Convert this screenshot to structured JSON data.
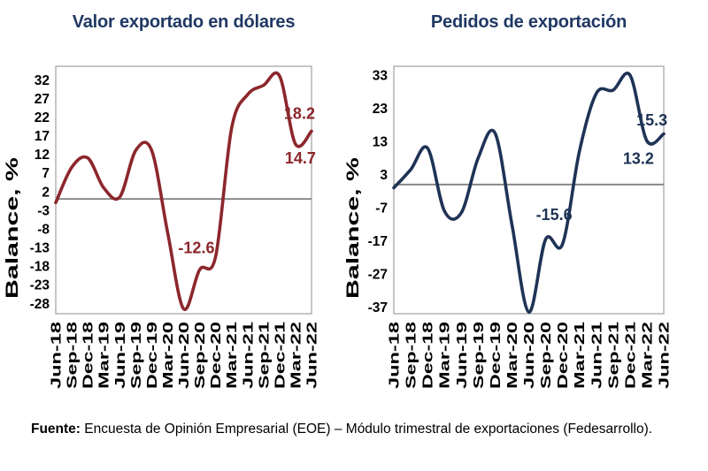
{
  "page": {
    "background": "#ffffff"
  },
  "styles": {
    "title_color": "#1F3864",
    "axis_text_color": "#000000",
    "frame_color": "#b3b3b3",
    "baseline_color": "#808080"
  },
  "chart_data": [
    {
      "type": "line",
      "title": "Valor exportado en dólares",
      "ylabel": "Balance, %",
      "categories": [
        "Jun-18",
        "Sep-18",
        "Dec-18",
        "Mar-19",
        "Jun-19",
        "Sep-19",
        "Dec-19",
        "Mar-20",
        "Jun-20",
        "Sep-20",
        "Dec-20",
        "Mar-21",
        "Jun-21",
        "Sep-21",
        "Dec-21",
        "Mar-22",
        "Jun-22"
      ],
      "values": [
        -1,
        8.5,
        11,
        3,
        0.5,
        13,
        13,
        -9,
        -29.5,
        -19,
        -15.5,
        19,
        28,
        30.5,
        33,
        14.7,
        18.2
      ],
      "yticks": [
        32,
        27,
        22,
        17,
        12,
        7,
        2,
        -3,
        -8,
        -13,
        -18,
        -23,
        -28
      ],
      "ylim": [
        -30.8,
        35.6
      ],
      "baseline": 0,
      "grid": false,
      "legend": "none",
      "line_color": "#8C272C",
      "annotations": [
        {
          "text": "18.2",
          "x_index": 15.25,
          "y": 23
        },
        {
          "text": "14.7",
          "x_index": 15.3,
          "y": 11
        },
        {
          "text": "-12.6",
          "x_index": 8.8,
          "y": -13
        }
      ]
    },
    {
      "type": "line",
      "title": "Pedidos de exportación",
      "ylabel": "Balance, %",
      "categories": [
        "Jun-18",
        "Sep-18",
        "Dec-18",
        "Mar-19",
        "Jun-19",
        "Sep-19",
        "Dec-19",
        "Mar-20",
        "Jun-20",
        "Sep-20",
        "Dec-20",
        "Mar-21",
        "Jun-21",
        "Sep-21",
        "Dec-21",
        "Mar-22",
        "Jun-22"
      ],
      "values": [
        -1,
        4.5,
        11,
        -8,
        -8.5,
        8,
        15.5,
        -12,
        -38.5,
        -16.5,
        -18,
        10,
        27.5,
        28.5,
        33,
        13.2,
        15.3
      ],
      "yticks": [
        33,
        23,
        13,
        3,
        -7,
        -17,
        -27,
        -37
      ],
      "ylim": [
        -39,
        35.7
      ],
      "baseline": 0,
      "grid": false,
      "legend": "none",
      "line_color": "#1E3355",
      "annotations": [
        {
          "text": "15.3",
          "x_index": 15.3,
          "y": 19.5
        },
        {
          "text": "13.2",
          "x_index": 14.5,
          "y": 8
        },
        {
          "text": "-15.6",
          "x_index": 9.5,
          "y": -9
        }
      ]
    }
  ],
  "footer": {
    "label": "Fuente:",
    "text": "Encuesta de Opinión Empresarial (EOE) – Módulo trimestral de exportaciones (Fedesarrollo)."
  }
}
